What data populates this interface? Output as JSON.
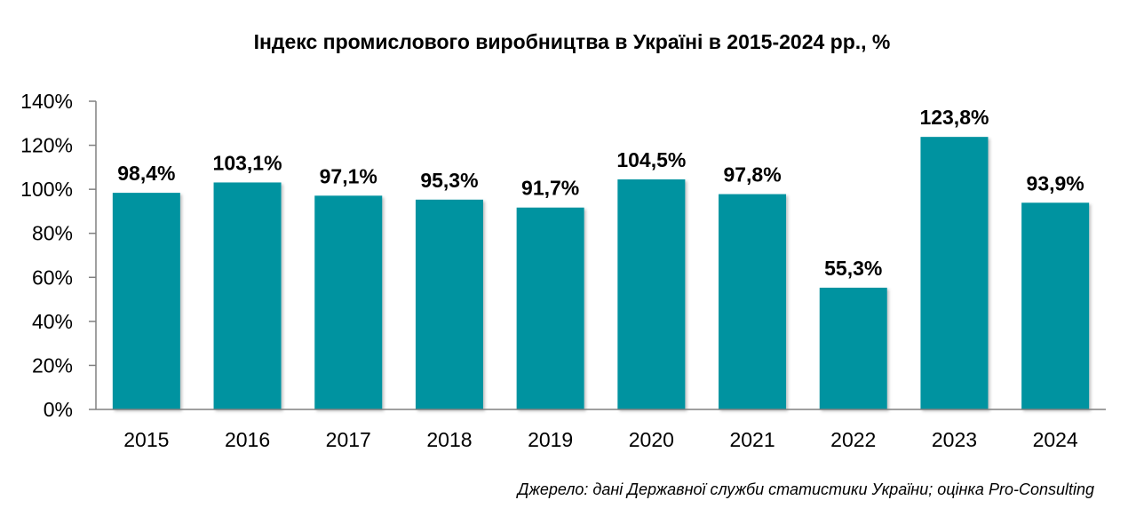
{
  "chart_data": {
    "type": "bar",
    "title": "Індекс промислового виробництва в Україні в 2015-2024 рр., %",
    "categories": [
      "2015",
      "2016",
      "2017",
      "2018",
      "2019",
      "2020",
      "2021",
      "2022",
      "2023",
      "2024"
    ],
    "values": [
      98.4,
      103.1,
      97.1,
      95.3,
      91.7,
      104.5,
      97.8,
      55.3,
      123.8,
      93.9
    ],
    "data_labels": [
      "98,4%",
      "103,1%",
      "97,1%",
      "95,3%",
      "91,7%",
      "104,5%",
      "97,8%",
      "55,3%",
      "123,8%",
      "93,9%"
    ],
    "ylim": [
      0,
      140
    ],
    "yticks": [
      0,
      20,
      40,
      60,
      80,
      100,
      120,
      140
    ],
    "ytick_labels": [
      "0%",
      "20%",
      "40%",
      "60%",
      "80%",
      "100%",
      "120%",
      "140%"
    ],
    "xlabel": "",
    "ylabel": "",
    "grid": false,
    "legend": "none",
    "bar_color": "#0093A0"
  },
  "source": "Джерело: дані Державної служби статистики України; оцінка Pro-Consulting"
}
